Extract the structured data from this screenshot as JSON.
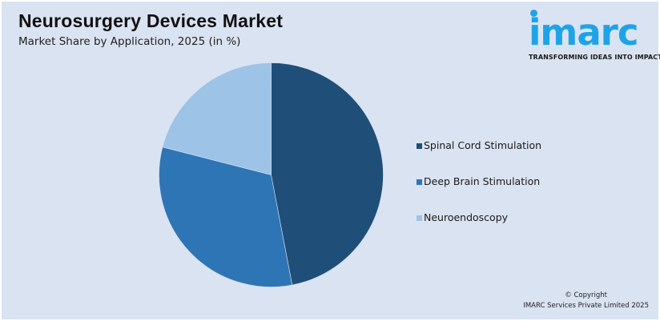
{
  "header": {
    "title": "Neurosurgery Devices Market",
    "subtitle": "Market Share by Application, 2025 (in %)"
  },
  "logo": {
    "wordmark": "imarc",
    "tagline": "TRANSFORMING IDEAS INTO IMPACT",
    "color": "#1fa3e8"
  },
  "footer": {
    "copyright_line1": "© Copyright",
    "copyright_line2": "IMARC Services Private Limited 2025"
  },
  "colors": {
    "background": "#dae3f2",
    "spinal_cord_stimulation": "#1f4e79",
    "deep_brain_stimulation": "#2e75b6",
    "neuroendoscopy": "#9dc3e6"
  },
  "chart_data": {
    "type": "pie",
    "title": "Neurosurgery Devices Market",
    "subtitle": "Market Share by Application, 2025 (in %)",
    "categories": [
      "Spinal Cord Stimulation",
      "Deep Brain Stimulation",
      "Neuroendoscopy"
    ],
    "values": [
      47,
      32,
      21
    ],
    "colors": [
      "#1f4e79",
      "#2e75b6",
      "#9dc3e6"
    ],
    "start_angle_deg": 0,
    "direction": "clockwise",
    "data_labels": false,
    "legend_position": "right",
    "units": "%"
  },
  "legend": {
    "items": [
      {
        "label": "Spinal Cord Stimulation",
        "color": "#1f4e79"
      },
      {
        "label": "Deep Brain Stimulation",
        "color": "#2e75b6"
      },
      {
        "label": "Neuroendoscopy",
        "color": "#9dc3e6"
      }
    ]
  }
}
